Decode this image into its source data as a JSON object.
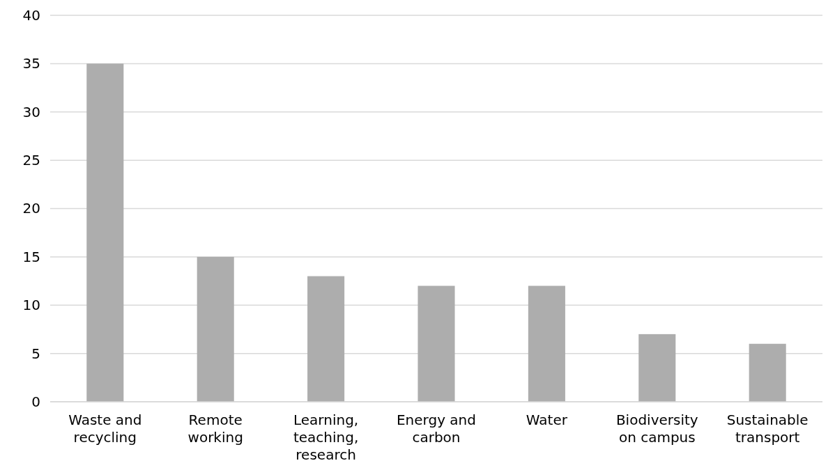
{
  "chart_data": {
    "type": "bar",
    "categories": [
      "Waste and recycling",
      "Remote working",
      "Learning, teaching, research",
      "Energy and carbon",
      "Water",
      "Biodiversity on campus",
      "Sustainable transport"
    ],
    "values": [
      35,
      15,
      13,
      12,
      12,
      7,
      6
    ],
    "color": "#adadad",
    "ylim": [
      0,
      40
    ],
    "yticks": [
      0,
      5,
      10,
      15,
      20,
      25,
      30,
      35,
      40
    ],
    "grid": "y"
  }
}
